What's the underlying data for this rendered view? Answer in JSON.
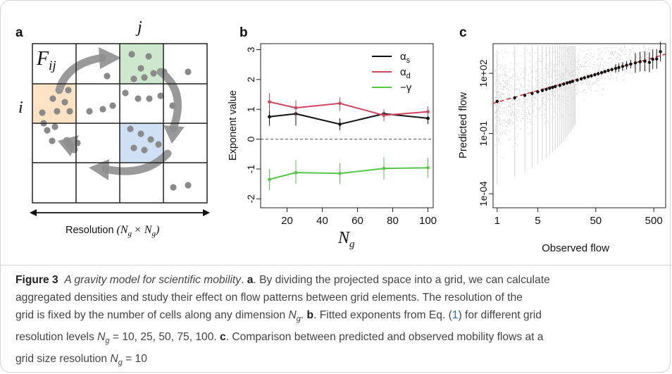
{
  "panel_a": {
    "letter": "a",
    "col_label": "j",
    "row_label": "i",
    "flow_label": "F",
    "flow_sub": "ij",
    "resolution_text": "Resolution",
    "resolution_math": "(N",
    "resolution_sub": "g",
    "resolution_times": "× N",
    "resolution_sub2": "g",
    "resolution_close": ")",
    "colors": {
      "orange": "#fde2c4",
      "green": "#cde8cd",
      "blue": "#cfe0f5",
      "dots": "#8a8a8a",
      "arrows": "#8f8f8f"
    }
  },
  "panel_b": {
    "letter": "b",
    "xlabel": "N",
    "xlabel_sub": "g",
    "ylabel": "Exponent value"
  },
  "panel_c": {
    "letter": "c",
    "xlabel": "Observed flow",
    "ylabel": "Predicted flow"
  },
  "chart_data": [
    {
      "type": "line",
      "panel": "b",
      "x": [
        10,
        25,
        50,
        75,
        100
      ],
      "xticks": [
        "20",
        "40",
        "60",
        "80",
        "100"
      ],
      "xtick_values": [
        20,
        40,
        60,
        80,
        100
      ],
      "yticks": [
        "-2",
        "-1",
        "0",
        "1",
        "2",
        "3"
      ],
      "ytick_values": [
        -2,
        -1,
        0,
        1,
        2,
        3
      ],
      "xlim": [
        5,
        103
      ],
      "ylim": [
        -2.3,
        3.2
      ],
      "reference_line": 0,
      "legend_position": "top-right",
      "series": [
        {
          "name": "α",
          "name_sub": "s",
          "color": "#111111",
          "values": [
            0.75,
            0.85,
            0.5,
            0.85,
            0.7
          ],
          "err_low": [
            0.45,
            0.45,
            0.3,
            0.7,
            0.5
          ],
          "err_high": [
            1.05,
            1.25,
            0.7,
            1.0,
            0.9
          ]
        },
        {
          "name": "α",
          "name_sub": "d",
          "color": "#d0465f",
          "values": [
            1.25,
            1.05,
            1.2,
            0.8,
            0.92
          ],
          "err_low": [
            0.95,
            0.8,
            0.95,
            0.6,
            0.75
          ],
          "err_high": [
            1.55,
            1.3,
            1.4,
            1.0,
            1.1
          ]
        },
        {
          "name": "−γ",
          "name_sub": "",
          "color": "#55c846",
          "values": [
            -1.35,
            -1.12,
            -1.15,
            -0.98,
            -0.96
          ],
          "err_low": [
            -1.7,
            -1.5,
            -1.5,
            -1.35,
            -1.3
          ],
          "err_high": [
            -1.0,
            -0.7,
            -0.8,
            -0.6,
            -0.62
          ]
        }
      ]
    },
    {
      "type": "scatter",
      "panel": "c",
      "x_scale": "log",
      "y_scale": "log",
      "xticks": [
        "1",
        "5",
        "50",
        "500"
      ],
      "xtick_values": [
        1,
        5,
        50,
        500
      ],
      "yticks": [
        "1e-04",
        "1e-01",
        "1e+02"
      ],
      "ytick_values": [
        0.0001,
        0.1,
        100
      ],
      "xlim": [
        0.85,
        800
      ],
      "ylim": [
        2e-05,
        3000
      ],
      "fit_line": {
        "color": "#e02020",
        "style": "dashed",
        "from": [
          0.85,
          3.2
        ],
        "to": [
          800,
          900
        ]
      },
      "binned_means": [
        {
          "x": 1,
          "y": 4
        },
        {
          "x": 2,
          "y": 6
        },
        {
          "x": 3,
          "y": 8
        },
        {
          "x": 4,
          "y": 10
        },
        {
          "x": 5,
          "y": 12
        },
        {
          "x": 6,
          "y": 14
        },
        {
          "x": 7,
          "y": 16
        },
        {
          "x": 8,
          "y": 18
        },
        {
          "x": 9,
          "y": 20
        },
        {
          "x": 10,
          "y": 22
        },
        {
          "x": 12,
          "y": 25
        },
        {
          "x": 14,
          "y": 29
        },
        {
          "x": 16,
          "y": 33
        },
        {
          "x": 18,
          "y": 36
        },
        {
          "x": 20,
          "y": 40
        },
        {
          "x": 24,
          "y": 46
        },
        {
          "x": 28,
          "y": 53
        },
        {
          "x": 32,
          "y": 60
        },
        {
          "x": 37,
          "y": 68
        },
        {
          "x": 42,
          "y": 75
        },
        {
          "x": 48,
          "y": 85
        },
        {
          "x": 55,
          "y": 96
        },
        {
          "x": 63,
          "y": 108
        },
        {
          "x": 72,
          "y": 122
        },
        {
          "x": 82,
          "y": 138
        },
        {
          "x": 95,
          "y": 155
        },
        {
          "x": 110,
          "y": 175
        },
        {
          "x": 125,
          "y": 195
        },
        {
          "x": 145,
          "y": 220
        },
        {
          "x": 170,
          "y": 255
        },
        {
          "x": 200,
          "y": 290
        },
        {
          "x": 240,
          "y": 330
        },
        {
          "x": 290,
          "y": 380
        },
        {
          "x": 350,
          "y": 400
        },
        {
          "x": 420,
          "y": 350
        },
        {
          "x": 480,
          "y": 500
        },
        {
          "x": 560,
          "y": 520
        },
        {
          "x": 650,
          "y": 1200
        }
      ],
      "scatter_color": "#b5b5b5"
    }
  ],
  "caption": {
    "label": "Figure 3",
    "title": "A gravity model for scientific mobility",
    "a_label": "a",
    "a_text": ". By dividing the projected space into a grid, we can calculate",
    "line2": "aggregated densities and study their effect on flow patterns between grid elements. The resolution of the",
    "line3_pre": "grid is fixed by the number of cells along any dimension ",
    "line3_var": "N",
    "line3_sub": "g",
    "line3_post": ". ",
    "b_label": "b",
    "b_text_pre": ". Fitted exponents from Eq. (",
    "eq_ref": "1",
    "b_text_post": ") for different grid",
    "line4_pre": "resolution levels ",
    "line4_var": "N",
    "line4_sub": "g",
    "line4_vals": " = 10, 25, 50, 75, 100. ",
    "c_label": "c",
    "c_text": ". Comparison between predicted and observed mobility flows at a",
    "line5_pre": "grid size resolution ",
    "line5_var": "N",
    "line5_sub": "g",
    "line5_post": " = 10"
  }
}
